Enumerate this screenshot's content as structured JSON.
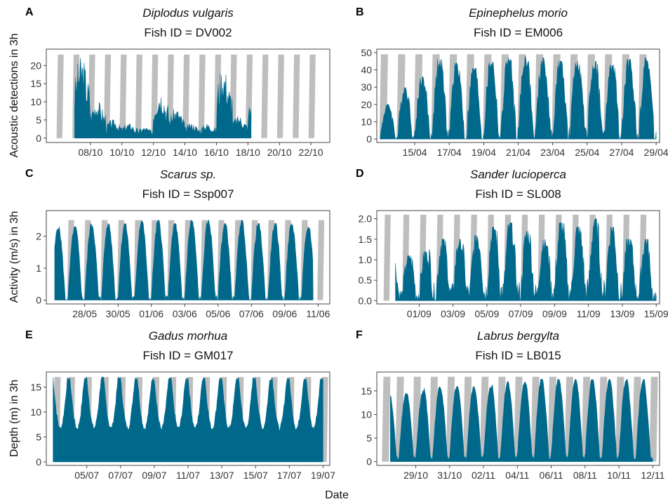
{
  "figure": {
    "ylabels": [
      "Acoustic detections in 3h",
      "Activity (m/s) in 3h",
      "Depth (m) in 3h"
    ],
    "xlabel": "Date",
    "colors": {
      "area": "#00688B",
      "night": "#BEBEBE"
    }
  },
  "chart_data": [
    {
      "panel": "A",
      "type": "area",
      "species": "Diplodus vulgaris",
      "fish_id": "Fish ID = DV002",
      "x_ticks": [
        "08/10",
        "10/10",
        "12/10",
        "14/10",
        "16/10",
        "18/10",
        "20/10",
        "22/10"
      ],
      "x_tick_days": [
        2,
        4,
        6,
        8,
        10,
        12,
        14,
        16
      ],
      "xlim_days": [
        -0.8,
        17.2
      ],
      "ylim": [
        -1.2,
        24.5
      ],
      "y_ticks": [
        0,
        5,
        10,
        15,
        20
      ],
      "night_top": 23,
      "night_start_days": [
        -0.15,
        0.85,
        1.85,
        2.85,
        3.85,
        4.85,
        5.85,
        6.85,
        7.85,
        8.85,
        9.85,
        10.85,
        11.85,
        12.85,
        13.85,
        14.85,
        15.85
      ],
      "night_len_days": 0.45,
      "data_range_days": [
        1.0,
        12.2
      ],
      "shape": {
        "base": 0.5,
        "amp": 0.3,
        "peak": 0.5,
        "noise": 0.5
      },
      "daily_max": [
        22,
        10,
        5,
        4,
        3,
        13,
        8,
        4,
        4,
        19,
        6,
        12,
        2
      ],
      "approx_values": true
    },
    {
      "panel": "B",
      "type": "area",
      "species": "Epinephelus morio",
      "fish_id": "Fish ID = EM006",
      "x_ticks": [
        "15/04",
        "17/04",
        "19/04",
        "21/04",
        "23/04",
        "25/04",
        "27/04",
        "29/04"
      ],
      "x_tick_days": [
        2,
        4,
        6,
        8,
        10,
        12,
        14,
        16
      ],
      "xlim_days": [
        -0.2,
        16.2
      ],
      "ylim": [
        -2,
        52
      ],
      "y_ticks": [
        0,
        10,
        20,
        30,
        40,
        50
      ],
      "night_top": 49,
      "night_start_days": [
        -0.05,
        0.95,
        1.95,
        2.95,
        3.95,
        4.95,
        5.95,
        6.95,
        7.95,
        8.95,
        9.95,
        10.95,
        11.95,
        12.95,
        13.95,
        14.95
      ],
      "night_len_days": 0.5,
      "data_range_days": [
        0.0,
        16.0
      ],
      "shape": {
        "base": 0.03,
        "amp": 0.97,
        "peak": 0.6,
        "noise": 0.25
      },
      "daily_max": [
        20,
        30,
        36,
        46,
        44,
        41,
        45,
        47,
        48,
        47,
        45,
        46,
        45,
        43,
        46,
        47,
        46
      ],
      "approx_values": true
    },
    {
      "panel": "C",
      "type": "area",
      "species": "Scarus sp.",
      "fish_id": "Fish ID = Ssp007",
      "x_ticks": [
        "28/05",
        "30/05",
        "01/06",
        "03/06",
        "05/06",
        "07/06",
        "09/06",
        "11/06"
      ],
      "x_tick_days": [
        2,
        4,
        6,
        8,
        10,
        12,
        14,
        16
      ],
      "xlim_days": [
        -0.3,
        16.7
      ],
      "ylim": [
        -0.12,
        2.8
      ],
      "y_ticks": [
        0,
        1,
        2
      ],
      "night_top": 2.5,
      "night_start_days": [
        0.95,
        1.95,
        2.95,
        3.95,
        4.95,
        5.95,
        6.95,
        7.95,
        8.95,
        9.95,
        10.95,
        11.95,
        12.95,
        13.95,
        14.95,
        15.95
      ],
      "night_len_days": 0.42,
      "data_range_days": [
        0.2,
        15.7
      ],
      "shape": {
        "base": 0.02,
        "amp": 0.98,
        "peak": 0.45,
        "noise": 0.08
      },
      "daily_max": [
        2.3,
        2.3,
        2.4,
        2.4,
        2.4,
        2.5,
        2.5,
        2.4,
        2.5,
        2.5,
        2.4,
        2.5,
        2.4,
        2.4,
        2.4,
        2.3
      ],
      "approx_values": true
    },
    {
      "panel": "D",
      "type": "area",
      "species": "Sander lucioperca",
      "fish_id": "Fish ID = SL008",
      "x_ticks": [
        "01/09",
        "03/09",
        "05/09",
        "07/09",
        "09/09",
        "11/09",
        "13/09",
        "15/09"
      ],
      "x_tick_days": [
        2,
        4,
        6,
        8,
        10,
        12,
        14,
        16
      ],
      "xlim_days": [
        -0.5,
        16.2
      ],
      "ylim": [
        -0.08,
        2.2
      ],
      "y_ticks": [
        0.0,
        0.5,
        1.0,
        1.5,
        2.0
      ],
      "y_tick_labels": [
        "0.0",
        "0.5",
        "1.0",
        "1.5",
        "2.0"
      ],
      "night_top": 2.1,
      "night_start_days": [
        -0.1,
        1.0,
        2.0,
        3.0,
        4.0,
        5.0,
        6.0,
        7.0,
        8.0,
        9.0,
        10.0,
        11.0,
        12.0,
        13.0,
        14.0,
        15.0
      ],
      "night_len_days": 0.42,
      "data_range_days": [
        0.6,
        16.0
      ],
      "shape": {
        "base": 0.12,
        "amp": 0.88,
        "peak": 0.35,
        "noise": 0.35
      },
      "daily_max": [
        1.1,
        1.2,
        1.5,
        1.5,
        1.6,
        1.8,
        1.9,
        1.7,
        1.5,
        1.9,
        1.8,
        2.0,
        1.8,
        1.5,
        1.5,
        1.0
      ],
      "approx_values": true
    },
    {
      "panel": "E",
      "type": "area",
      "species": "Gadus morhua",
      "fish_id": "Fish ID = GM017",
      "x_ticks": [
        "05/07",
        "07/07",
        "09/07",
        "11/07",
        "13/07",
        "15/07",
        "17/07",
        "19/07"
      ],
      "x_tick_days": [
        2,
        4,
        6,
        8,
        10,
        12,
        14,
        16
      ],
      "xlim_days": [
        -0.4,
        16.4
      ],
      "ylim": [
        -0.7,
        18
      ],
      "y_ticks": [
        0,
        5,
        10,
        15
      ],
      "night_top": 17,
      "night_start_days": [
        0.0,
        0.85,
        1.85,
        2.85,
        3.85,
        4.85,
        5.85,
        6.85,
        7.85,
        8.85,
        9.85,
        10.85,
        11.85,
        12.85,
        13.85,
        14.85,
        15.85
      ],
      "night_len_days": 0.45,
      "data_range_days": [
        0.0,
        16.0
      ],
      "shape": {
        "base": 1.0,
        "amp": -0.6,
        "peak": 0.5,
        "noise": 0.06
      },
      "daily_max": [
        16.8,
        16.8,
        17.0,
        16.9,
        16.9,
        16.8,
        16.8,
        16.8,
        16.9,
        16.8,
        16.8,
        16.9,
        16.8,
        16.8,
        16.8,
        16.8
      ],
      "approx_values": true
    },
    {
      "panel": "F",
      "type": "area",
      "species": "Labrus bergylta",
      "fish_id": "Fish ID = LB015",
      "x_ticks": [
        "29/10",
        "31/10",
        "02/11",
        "04/11",
        "06/11",
        "08/11",
        "10/11",
        "12/11"
      ],
      "x_tick_days": [
        2,
        4,
        6,
        8,
        10,
        12,
        14,
        16
      ],
      "xlim_days": [
        -0.3,
        16.4
      ],
      "ylim": [
        -0.8,
        19
      ],
      "y_ticks": [
        0,
        5,
        10,
        15
      ],
      "night_top": 18,
      "night_start_days": [
        0.0,
        0.8,
        1.8,
        2.8,
        3.8,
        4.8,
        5.8,
        6.8,
        7.8,
        8.8,
        9.8,
        10.8,
        11.8,
        12.8,
        13.8,
        14.8,
        15.8
      ],
      "night_len_days": 0.5,
      "data_range_days": [
        0.5,
        16.0
      ],
      "shape": {
        "base": 0.05,
        "amp": 0.95,
        "peak": 0.55,
        "noise": 0.05
      },
      "daily_max": [
        14.5,
        15,
        16,
        16,
        16,
        16,
        17,
        17,
        17.5,
        17.5,
        17.5,
        17.5,
        17.5,
        17.5,
        17.5,
        17.5
      ],
      "approx_values": true
    }
  ]
}
